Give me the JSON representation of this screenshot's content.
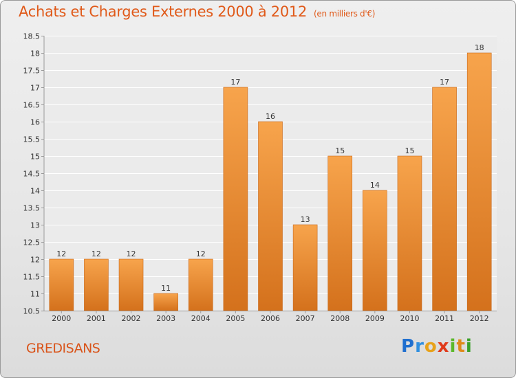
{
  "header": {
    "title": "Achats et Charges Externes 2000 à 2012",
    "subtitle": "(en milliers d'€)"
  },
  "footer": {
    "commune": "GREDISANS",
    "logo_letters": [
      "P",
      "r",
      "o",
      "x",
      "i",
      "t",
      "i"
    ]
  },
  "colors": {
    "bar_top": "#f7a44c",
    "bar_bottom": "#d4711c",
    "title": "#e05a1a",
    "logo": [
      "#1f6fcf",
      "#2f8fe0",
      "#e8a21a",
      "#e03a1a",
      "#5bb82a",
      "#e08a1a",
      "#3aa02a"
    ]
  },
  "chart_data": {
    "type": "bar",
    "categories": [
      "2000",
      "2001",
      "2002",
      "2003",
      "2004",
      "2005",
      "2006",
      "2007",
      "2008",
      "2009",
      "2010",
      "2011",
      "2012"
    ],
    "values": [
      12,
      12,
      12,
      11,
      12,
      17,
      16,
      13,
      15,
      14,
      15,
      17,
      18
    ],
    "data_labels": [
      "12",
      "12",
      "12",
      "11",
      "12",
      "17",
      "16",
      "13",
      "15",
      "14",
      "15",
      "17",
      "18"
    ],
    "ylim": [
      10.5,
      18.5
    ],
    "yticks": [
      10.5,
      11,
      11.5,
      12,
      12.5,
      13,
      13.5,
      14,
      14.5,
      15,
      15.5,
      16,
      16.5,
      17,
      17.5,
      18,
      18.5
    ],
    "ytick_labels": [
      "10.5",
      "11",
      "11.5",
      "12",
      "12.5",
      "13",
      "13.5",
      "14",
      "14.5",
      "15",
      "15.5",
      "16",
      "16.5",
      "17",
      "17.5",
      "18",
      "18.5"
    ],
    "grid": true,
    "xlabel": "",
    "ylabel": ""
  }
}
